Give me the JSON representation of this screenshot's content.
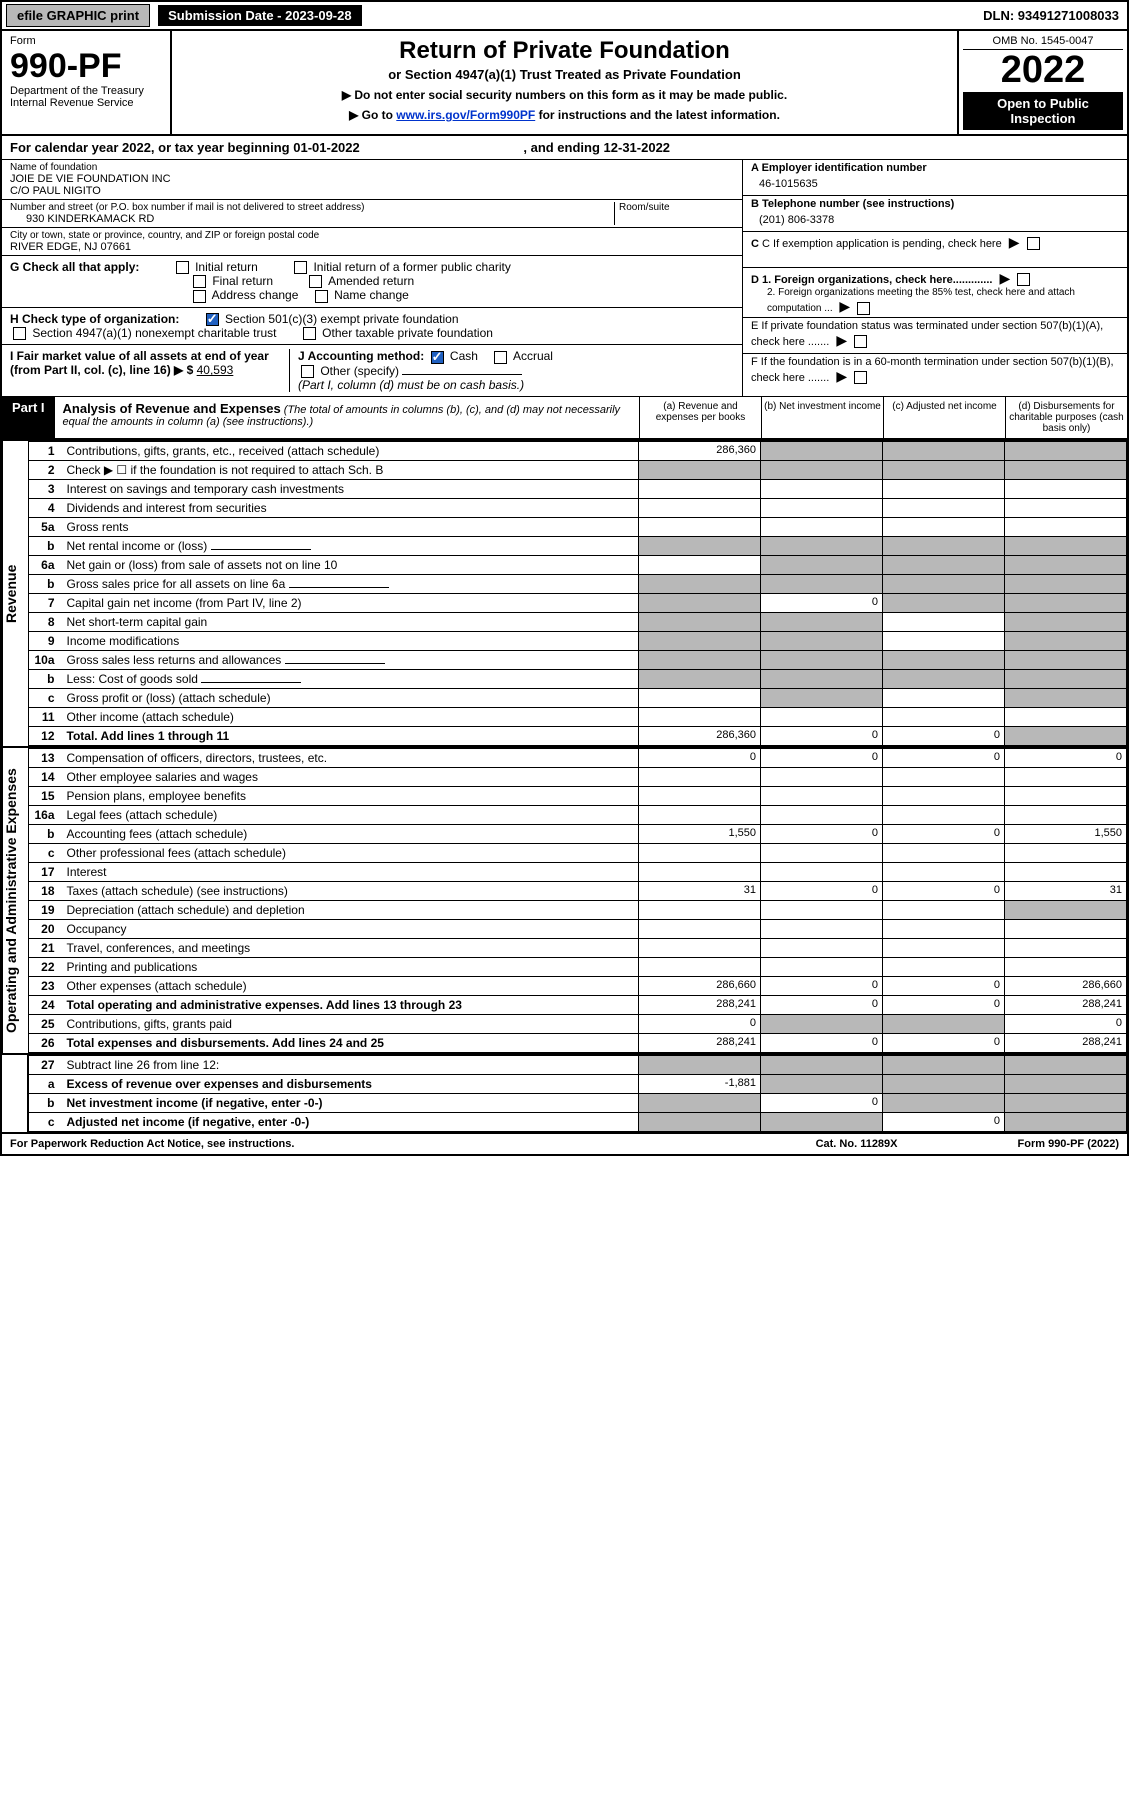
{
  "topbar": {
    "efile": "efile GRAPHIC print",
    "submission_label": "Submission Date - 2023-09-28",
    "dln": "DLN: 93491271008033"
  },
  "header": {
    "form_word": "Form",
    "form_no": "990-PF",
    "dept": "Department of the Treasury",
    "irs": "Internal Revenue Service",
    "title": "Return of Private Foundation",
    "subtitle": "or Section 4947(a)(1) Trust Treated as Private Foundation",
    "instr1": "▶ Do not enter social security numbers on this form as it may be made public.",
    "instr2_pre": "▶ Go to ",
    "instr2_link": "www.irs.gov/Form990PF",
    "instr2_post": " for instructions and the latest information.",
    "omb": "OMB No. 1545-0047",
    "year": "2022",
    "open": "Open to Public Inspection"
  },
  "cal_year": {
    "text_pre": "For calendar year 2022, or tax year beginning ",
    "begin": "01-01-2022",
    "text_mid": " , and ending ",
    "end": "12-31-2022"
  },
  "entity": {
    "name_lbl": "Name of foundation",
    "name1": "JOIE DE VIE FOUNDATION INC",
    "name2": "C/O PAUL NIGITO",
    "addr_lbl": "Number and street (or P.O. box number if mail is not delivered to street address)",
    "addr": "930 KINDERKAMACK RD",
    "room_lbl": "Room/suite",
    "city_lbl": "City or town, state or province, country, and ZIP or foreign postal code",
    "city": "RIVER EDGE, NJ  07661",
    "ein_lbl": "A Employer identification number",
    "ein": "46-1015635",
    "phone_lbl": "B Telephone number (see instructions)",
    "phone": "(201) 806-3378",
    "c_lbl": "C If exemption application is pending, check here",
    "d1_lbl": "D 1. Foreign organizations, check here.............",
    "d2_lbl": "2. Foreign organizations meeting the 85% test, check here and attach computation ...",
    "e_lbl": "E  If private foundation status was terminated under section 507(b)(1)(A), check here .......",
    "f_lbl": "F  If the foundation is in a 60-month termination under section 507(b)(1)(B), check here .......",
    "g_lbl": "G Check all that apply:",
    "g_opts": [
      "Initial return",
      "Initial return of a former public charity",
      "Final return",
      "Amended return",
      "Address change",
      "Name change"
    ],
    "h_lbl": "H Check type of organization:",
    "h_opt1": "Section 501(c)(3) exempt private foundation",
    "h_opt2": "Section 4947(a)(1) nonexempt charitable trust",
    "h_opt3": "Other taxable private foundation",
    "i_lbl": "I Fair market value of all assets at end of year (from Part II, col. (c), line 16) ▶ $",
    "i_val": "40,593",
    "j_lbl": "J Accounting method:",
    "j_cash": "Cash",
    "j_accrual": "Accrual",
    "j_other": "Other (specify)",
    "j_note": "(Part I, column (d) must be on cash basis.)"
  },
  "part1": {
    "label": "Part I",
    "title": "Analysis of Revenue and Expenses",
    "note": "(The total of amounts in columns (b), (c), and (d) may not necessarily equal the amounts in column (a) (see instructions).)",
    "col_a": "(a)  Revenue and expenses per books",
    "col_b": "(b)  Net investment income",
    "col_c": "(c)  Adjusted net income",
    "col_d": "(d)  Disbursements for charitable purposes (cash basis only)"
  },
  "sections": {
    "revenue": "Revenue",
    "opex": "Operating and Administrative Expenses"
  },
  "rows": [
    {
      "n": "1",
      "d": "Contributions, gifts, grants, etc., received (attach schedule)",
      "a": "286,360",
      "shade_bcd": true
    },
    {
      "n": "2",
      "d": "Check ▶ ☐ if the foundation is not required to attach Sch. B",
      "shade_all": true,
      "dotsafter": true
    },
    {
      "n": "3",
      "d": "Interest on savings and temporary cash investments"
    },
    {
      "n": "4",
      "d": "Dividends and interest from securities"
    },
    {
      "n": "5a",
      "d": "Gross rents"
    },
    {
      "n": "b",
      "d": "Net rental income or (loss)",
      "inline_box": true,
      "shade_all": true
    },
    {
      "n": "6a",
      "d": "Net gain or (loss) from sale of assets not on line 10",
      "shade_bcd": true
    },
    {
      "n": "b",
      "d": "Gross sales price for all assets on line 6a",
      "inline_box": true,
      "shade_all": true
    },
    {
      "n": "7",
      "d": "Capital gain net income (from Part IV, line 2)",
      "b": "0",
      "shade_a": true,
      "shade_cd": true
    },
    {
      "n": "8",
      "d": "Net short-term capital gain",
      "shade_ab": true,
      "shade_d": true
    },
    {
      "n": "9",
      "d": "Income modifications",
      "shade_ab": true,
      "shade_d": true
    },
    {
      "n": "10a",
      "d": "Gross sales less returns and allowances",
      "inline_box": true,
      "shade_all": true
    },
    {
      "n": "b",
      "d": "Less: Cost of goods sold",
      "inline_box": true,
      "shade_all": true
    },
    {
      "n": "c",
      "d": "Gross profit or (loss) (attach schedule)",
      "shade_b": true,
      "shade_d": true
    },
    {
      "n": "11",
      "d": "Other income (attach schedule)"
    },
    {
      "n": "12",
      "d": "Total. Add lines 1 through 11",
      "bold": true,
      "a": "286,360",
      "b": "0",
      "c": "0",
      "shade_d": true
    }
  ],
  "exp_rows": [
    {
      "n": "13",
      "d": "Compensation of officers, directors, trustees, etc.",
      "a": "0",
      "b": "0",
      "c": "0",
      "dd": "0"
    },
    {
      "n": "14",
      "d": "Other employee salaries and wages"
    },
    {
      "n": "15",
      "d": "Pension plans, employee benefits"
    },
    {
      "n": "16a",
      "d": "Legal fees (attach schedule)"
    },
    {
      "n": "b",
      "d": "Accounting fees (attach schedule)",
      "a": "1,550",
      "b": "0",
      "c": "0",
      "dd": "1,550"
    },
    {
      "n": "c",
      "d": "Other professional fees (attach schedule)"
    },
    {
      "n": "17",
      "d": "Interest"
    },
    {
      "n": "18",
      "d": "Taxes (attach schedule) (see instructions)",
      "a": "31",
      "b": "0",
      "c": "0",
      "dd": "31"
    },
    {
      "n": "19",
      "d": "Depreciation (attach schedule) and depletion",
      "shade_d": true
    },
    {
      "n": "20",
      "d": "Occupancy"
    },
    {
      "n": "21",
      "d": "Travel, conferences, and meetings"
    },
    {
      "n": "22",
      "d": "Printing and publications"
    },
    {
      "n": "23",
      "d": "Other expenses (attach schedule)",
      "a": "286,660",
      "b": "0",
      "c": "0",
      "dd": "286,660"
    },
    {
      "n": "24",
      "d": "Total operating and administrative expenses. Add lines 13 through 23",
      "bold": true,
      "a": "288,241",
      "b": "0",
      "c": "0",
      "dd": "288,241"
    },
    {
      "n": "25",
      "d": "Contributions, gifts, grants paid",
      "a": "0",
      "shade_bc": true,
      "dd": "0"
    },
    {
      "n": "26",
      "d": "Total expenses and disbursements. Add lines 24 and 25",
      "bold": true,
      "a": "288,241",
      "b": "0",
      "c": "0",
      "dd": "288,241"
    }
  ],
  "bottom_rows": [
    {
      "n": "27",
      "d": "Subtract line 26 from line 12:",
      "shade_all": true
    },
    {
      "n": "a",
      "d": "Excess of revenue over expenses and disbursements",
      "bold": true,
      "a": "-1,881",
      "shade_bcd": true
    },
    {
      "n": "b",
      "d": "Net investment income (if negative, enter -0-)",
      "bold": true,
      "shade_a": true,
      "b": "0",
      "shade_cd": true
    },
    {
      "n": "c",
      "d": "Adjusted net income (if negative, enter -0-)",
      "bold": true,
      "shade_ab": true,
      "c": "0",
      "shade_d": true
    }
  ],
  "footer": {
    "left": "For Paperwork Reduction Act Notice, see instructions.",
    "mid": "Cat. No. 11289X",
    "right": "Form 990-PF (2022)"
  },
  "colors": {
    "shade": "#b8b8b8",
    "link": "#0033cc",
    "check": "#2060c0"
  }
}
